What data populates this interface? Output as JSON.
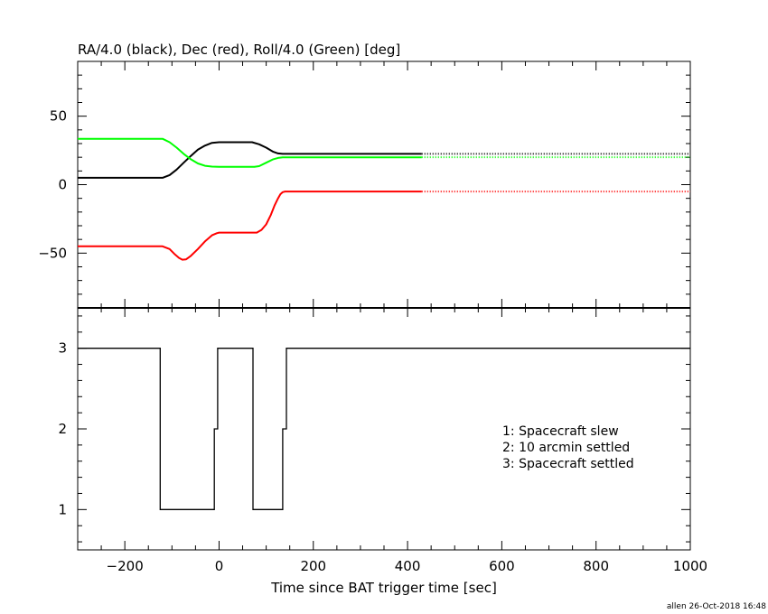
{
  "chart_data": [
    {
      "type": "line",
      "title": "RA/4.0 (black), Dec (red), Roll/4.0 (Green) [deg]",
      "xlabel": "",
      "ylabel": "",
      "xlim": [
        -300,
        1000
      ],
      "ylim": [
        -90,
        90
      ],
      "yticks": [
        -50,
        0,
        50
      ],
      "grid": false,
      "series": [
        {
          "color": "#000000",
          "x": [
            -300,
            -120,
            -105,
            -90,
            -75,
            -60,
            -45,
            -30,
            -15,
            0,
            70,
            85,
            100,
            115,
            125,
            135,
            430
          ],
          "y": [
            5,
            5,
            7,
            11,
            16,
            21,
            25.5,
            28.5,
            30.5,
            31,
            31,
            29.5,
            27,
            24,
            22.8,
            22.5,
            22.5
          ],
          "dotted_after": 430,
          "extend_to": 1000
        },
        {
          "color": "#ff0000",
          "x": [
            -300,
            -120,
            -105,
            -95,
            -85,
            -78,
            -70,
            -60,
            -45,
            -30,
            -15,
            -5,
            0,
            80,
            90,
            100,
            110,
            118,
            125,
            130,
            135,
            140,
            430
          ],
          "y": [
            -45,
            -45,
            -47,
            -50.5,
            -53.5,
            -54.8,
            -54.5,
            -52,
            -47,
            -41.5,
            -37,
            -35.5,
            -35,
            -35,
            -33,
            -29,
            -22,
            -15,
            -10,
            -7,
            -5.5,
            -5,
            -5
          ],
          "dotted_after": 430,
          "extend_to": 1000
        },
        {
          "color": "#00ff00",
          "x": [
            -300,
            -120,
            -105,
            -90,
            -75,
            -60,
            -45,
            -30,
            -15,
            0,
            75,
            85,
            100,
            115,
            125,
            135,
            430
          ],
          "y": [
            33.5,
            33.5,
            31,
            27,
            22.5,
            18.5,
            15.5,
            13.8,
            13.2,
            13,
            13,
            13.5,
            16,
            18.5,
            19.5,
            20,
            20
          ],
          "dotted_after": 430,
          "extend_to": 1000
        }
      ]
    },
    {
      "type": "line",
      "title": "",
      "xlabel": "Time since BAT trigger time [sec]",
      "ylabel": "",
      "xlim": [
        -300,
        1000
      ],
      "ylim": [
        0.5,
        3.5
      ],
      "xticks": [
        -200,
        0,
        200,
        400,
        600,
        800,
        1000
      ],
      "yticks": [
        1,
        2,
        3
      ],
      "grid": false,
      "series": [
        {
          "color": "#000000",
          "step": true,
          "x": [
            -300,
            -125,
            -125,
            -10,
            -10,
            -3,
            -3,
            72,
            72,
            135,
            135,
            143,
            143,
            1000
          ],
          "y": [
            3,
            3,
            1,
            1,
            2,
            2,
            3,
            3,
            1,
            1,
            2,
            2,
            3,
            3
          ]
        }
      ],
      "annotations": [
        "1: Spacecraft slew",
        "2: 10 arcmin settled",
        "3: Spacecraft settled"
      ]
    }
  ],
  "footer": "allen 26-Oct-2018 16:48"
}
